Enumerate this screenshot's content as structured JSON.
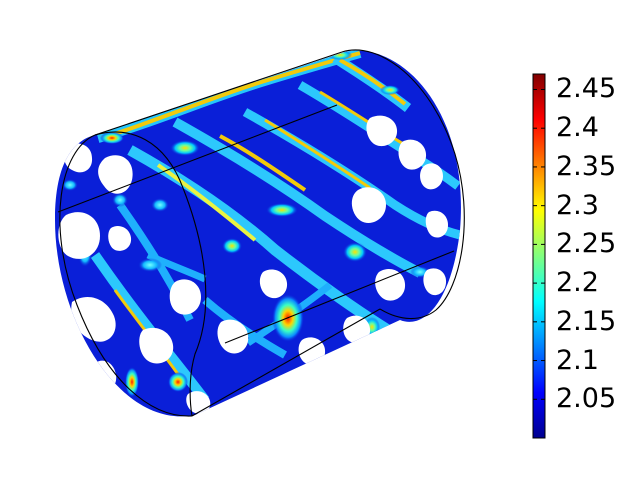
{
  "figure": {
    "subject": "3D cylinder surface plot with jet colormap",
    "colormap": "jet",
    "background_color": "#ffffff",
    "outline_color": "#000000",
    "surface_base_color": "#0a1fd8"
  },
  "colorbar": {
    "min": 2.0,
    "max": 2.47,
    "ticks": [
      {
        "value": 2.45,
        "label": "2.45"
      },
      {
        "value": 2.4,
        "label": "2.4"
      },
      {
        "value": 2.35,
        "label": "2.35"
      },
      {
        "value": 2.3,
        "label": "2.3"
      },
      {
        "value": 2.25,
        "label": "2.25"
      },
      {
        "value": 2.2,
        "label": "2.2"
      },
      {
        "value": 2.15,
        "label": "2.15"
      },
      {
        "value": 2.1,
        "label": "2.1"
      },
      {
        "value": 2.05,
        "label": "2.05"
      }
    ],
    "jet_stops": [
      "#00008f",
      "#0000ff",
      "#0080ff",
      "#00ffff",
      "#80ff80",
      "#ffff00",
      "#ff8000",
      "#ff0000",
      "#800000"
    ]
  }
}
